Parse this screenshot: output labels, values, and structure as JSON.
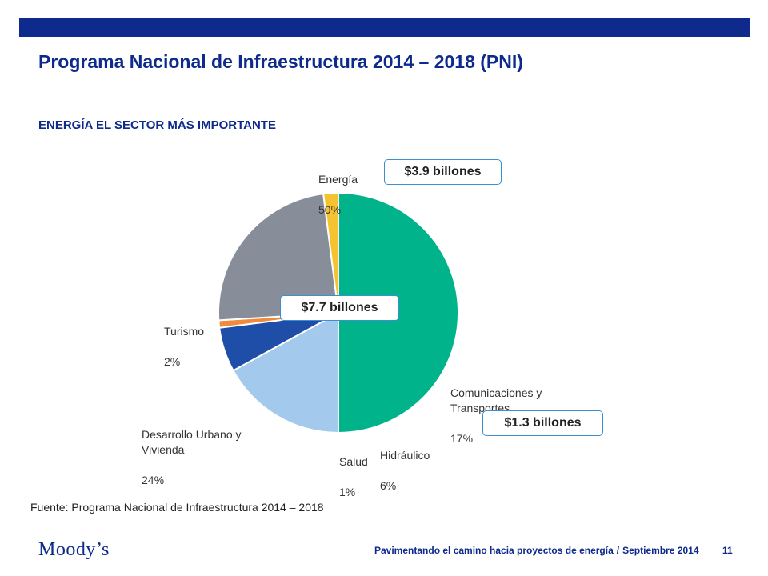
{
  "page": {
    "title": "Programa Nacional de Infraestructura 2014 – 2018 (PNI)",
    "subtitle": "ENERGÍA EL SECTOR MÁS IMPORTANTE",
    "source": "Fuente: Programa Nacional de Infraestructura 2014 – 2018",
    "logo": "Moody’s",
    "footer_text": "Pavimentando el camino hacia proyectos de energía",
    "footer_separator": "/",
    "footer_date": "Septiembre 2014",
    "page_number": "11"
  },
  "callouts": {
    "energia": "$3.9 billones",
    "total": "$7.7 billones",
    "comunicaciones": "$1.3 billones"
  },
  "colors": {
    "brand_blue": "#0d2a8c",
    "callout_border": "#3a8fd0"
  },
  "chart_data": {
    "type": "pie",
    "title": "",
    "start_angle_deg": 90,
    "direction": "clockwise",
    "slices": [
      {
        "label": "Energía",
        "value": 50,
        "display": "50%",
        "color": "#00b38a"
      },
      {
        "label": "Comunicaciones y\nTransportes",
        "value": 17,
        "display": "17%",
        "color": "#a3c9ec"
      },
      {
        "label": "Hidráulico",
        "value": 6,
        "display": "6%",
        "color": "#1f4ea8"
      },
      {
        "label": "Salud",
        "value": 1,
        "display": "1%",
        "color": "#f08a3e"
      },
      {
        "label": "Desarrollo Urbano y\nVivienda",
        "value": 24,
        "display": "24%",
        "color": "#878e99"
      },
      {
        "label": "Turismo",
        "value": 2,
        "display": "2%",
        "color": "#f5c230"
      }
    ]
  }
}
